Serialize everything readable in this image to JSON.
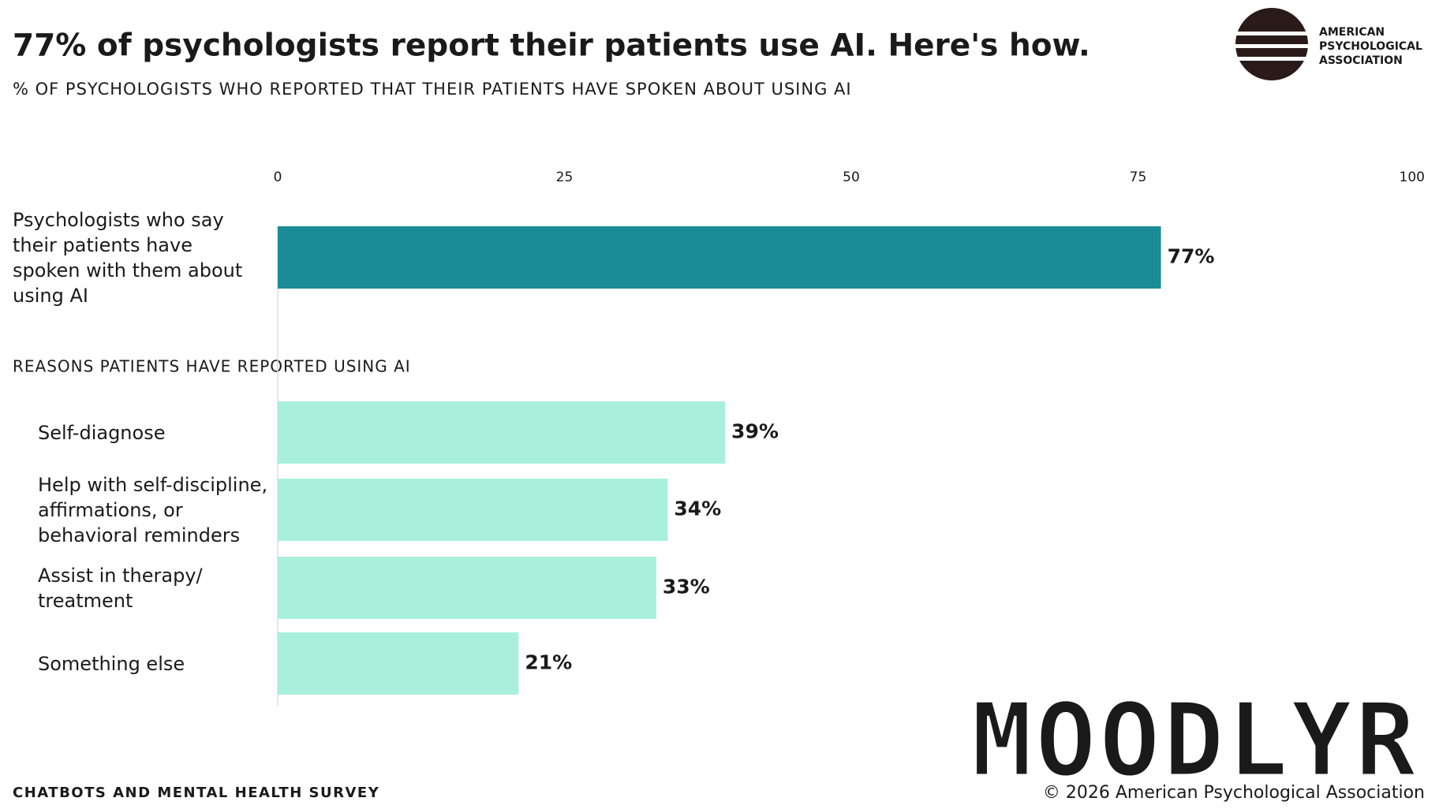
{
  "header": {
    "title": "77% of psychologists report their patients use AI. Here's how.",
    "subtitle": "% OF PSYCHOLOGISTS WHO REPORTED THAT THEIR PATIENTS HAVE SPOKEN ABOUT USING AI",
    "logo": [
      "AMERICAN",
      "PSYCHOLOGICAL",
      "ASSOCIATION"
    ]
  },
  "chart_data": [
    {
      "type": "bar",
      "orientation": "horizontal",
      "categories": [
        "Psychologists who say their patients have spoken with them about using AI"
      ],
      "values": [
        77
      ],
      "value_labels": [
        "77%"
      ],
      "color": "#1b8b96",
      "xlim": [
        0,
        100
      ],
      "xticks": [
        0,
        25,
        50,
        75,
        100
      ]
    },
    {
      "type": "bar",
      "orientation": "horizontal",
      "title": "REASONS PATIENTS HAVE REPORTED USING AI",
      "categories": [
        "Self-diagnose",
        "Help with self-discipline, affirmations, or behavioral reminders",
        "Assist in therapy/ treatment",
        "Something else"
      ],
      "values": [
        39,
        34,
        33,
        21
      ],
      "value_labels": [
        "39%",
        "34%",
        "33%",
        "21%"
      ],
      "color": "#a8f0dc",
      "xlim": [
        0,
        100
      ]
    }
  ],
  "footer": {
    "source": "CHATBOTS AND MENTAL HEALTH SURVEY",
    "copyright": "© 2026 American Psychological Association",
    "watermark": "MOODLYR"
  }
}
